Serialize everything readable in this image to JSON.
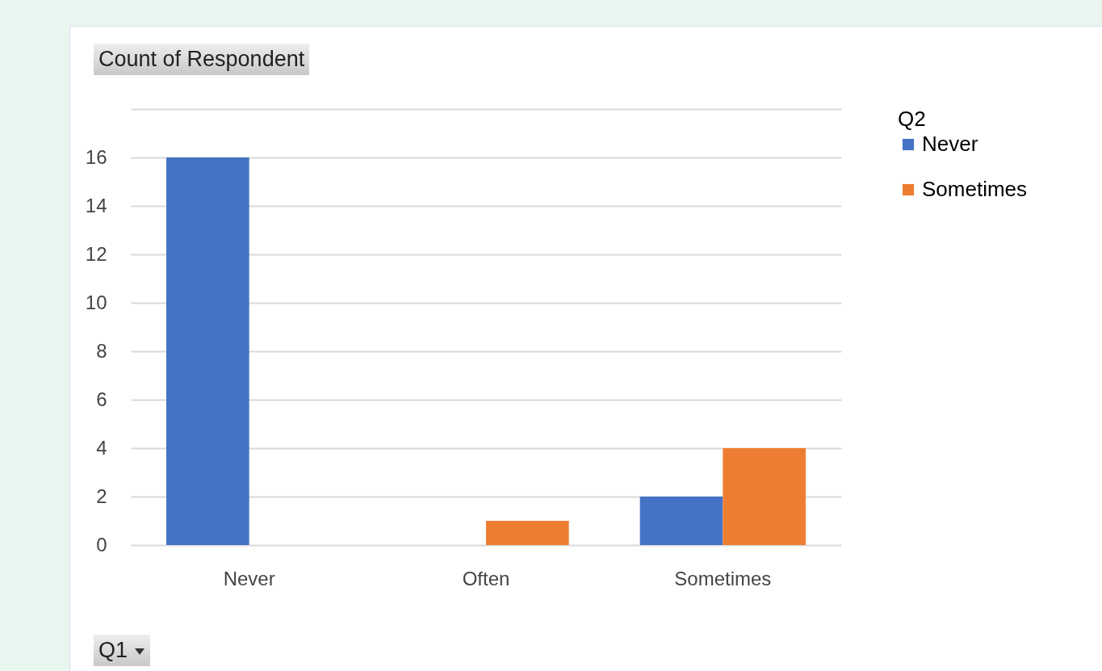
{
  "chart_data": {
    "type": "bar",
    "title": "Count of Respondent",
    "xlabel": "Q1",
    "legend_title": "Q2",
    "categories": [
      "Never",
      "Often",
      "Sometimes"
    ],
    "series": [
      {
        "name": "Never",
        "color": "#4472c4",
        "values": [
          16,
          null,
          2
        ]
      },
      {
        "name": "Sometimes",
        "color": "#ed7d31",
        "values": [
          null,
          1,
          4
        ]
      }
    ],
    "ylim": [
      0,
      18
    ],
    "yticks": [
      0,
      2,
      4,
      6,
      8,
      10,
      12,
      14,
      16,
      {
        "value": 18,
        "label": null
      }
    ],
    "grid": "y",
    "legend": "right"
  }
}
